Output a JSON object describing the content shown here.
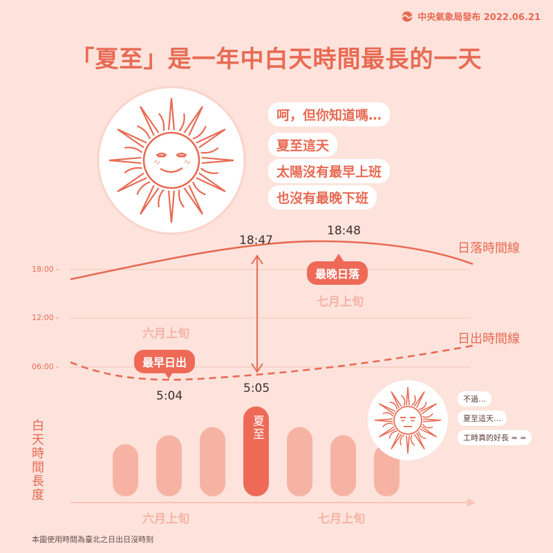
{
  "publisher": {
    "text": "中央氣象局發布 2022.06.21",
    "logo_icon": "cwb-logo-icon"
  },
  "title": "「夏至」是一年中白天時間最長的一天",
  "speech": [
    "呵，但你知道嗎…",
    "夏至這天",
    "太陽沒有最早上班",
    "也沒有最晚下班"
  ],
  "small_speech": [
    "不過…",
    "夏至這天…",
    "工時真的好長 = ="
  ],
  "footnote": "本圖使用時間為臺北之日出日沒時刻",
  "chart_data": {
    "type": "line",
    "y_axis_ticks": [
      "18:00 -",
      "12:00 -",
      "06:00 -"
    ],
    "series": [
      {
        "name": "日落時間線",
        "style": "solid"
      },
      {
        "name": "日出時間線",
        "style": "dashed"
      }
    ],
    "sunset_labels": {
      "solstice": "18:47",
      "latest": "18:48"
    },
    "sunrise_labels": {
      "earliest": "5:04",
      "solstice": "5:05"
    },
    "tags": {
      "latest_sunset": "最晚日落",
      "earliest_sunrise": "最早日出"
    },
    "period_labels": {
      "july": "七月上旬",
      "june": "六月上旬"
    },
    "daylight_bars": {
      "ylabel": "白天時間長度",
      "highlight_label": "夏至",
      "values": [
        0.58,
        0.68,
        0.77,
        1.0,
        0.77,
        0.68,
        0.58
      ],
      "highlight_index": 3,
      "x_labels": [
        "六月上旬",
        "七月上旬"
      ]
    }
  },
  "colors": {
    "accent": "#e86a53",
    "background": "#fde3dc",
    "bar": "#f6b3a4",
    "bar_highlight": "#ee6a57"
  }
}
